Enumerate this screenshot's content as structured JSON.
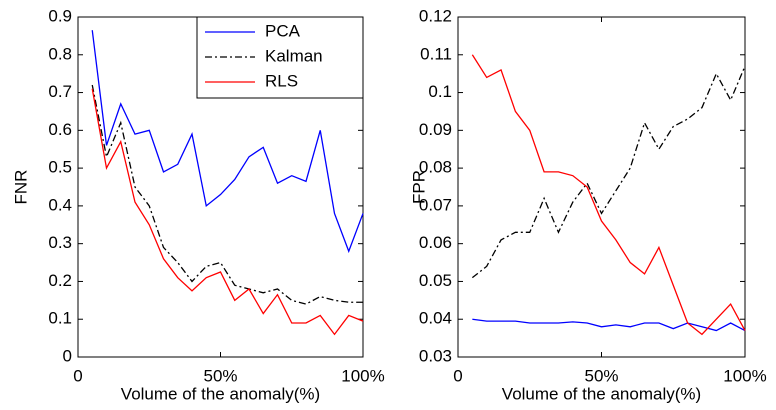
{
  "chart_data": [
    {
      "type": "line",
      "xlabel": "Volume of the anomaly(%)",
      "ylabel": "FNR",
      "x": [
        5,
        10,
        15,
        20,
        25,
        30,
        35,
        40,
        45,
        50,
        55,
        60,
        65,
        70,
        75,
        80,
        85,
        90,
        95,
        100
      ],
      "xlim": [
        0,
        100
      ],
      "xticks": [
        0,
        {
          "value": 50,
          "label": "50%"
        },
        {
          "value": 100,
          "label": "100%"
        }
      ],
      "ylim": [
        0,
        0.9
      ],
      "yticks": [
        0,
        0.1,
        0.2,
        0.3,
        0.4,
        0.5,
        0.6,
        0.7,
        0.8,
        0.9
      ],
      "legend": "upper right",
      "series": [
        {
          "name": "PCA",
          "color": "#0000ff",
          "linestyle": "solid",
          "values": [
            0.865,
            0.56,
            0.67,
            0.59,
            0.6,
            0.49,
            0.51,
            0.59,
            0.4,
            0.43,
            0.47,
            0.53,
            0.555,
            0.46,
            0.48,
            0.465,
            0.6,
            0.38,
            0.28,
            0.38
          ]
        },
        {
          "name": "Kalman",
          "color": "#000000",
          "linestyle": "dashdot",
          "values": [
            0.72,
            0.53,
            0.62,
            0.45,
            0.4,
            0.29,
            0.25,
            0.2,
            0.24,
            0.25,
            0.19,
            0.18,
            0.17,
            0.18,
            0.15,
            0.14,
            0.16,
            0.15,
            0.145,
            0.145
          ]
        },
        {
          "name": "RLS",
          "color": "#ff0000",
          "linestyle": "solid",
          "values": [
            0.71,
            0.5,
            0.57,
            0.41,
            0.35,
            0.26,
            0.21,
            0.175,
            0.21,
            0.225,
            0.15,
            0.18,
            0.115,
            0.165,
            0.09,
            0.09,
            0.11,
            0.06,
            0.11,
            0.095
          ]
        }
      ]
    },
    {
      "type": "line",
      "xlabel": "Volume of the anomaly(%)",
      "ylabel": "FPR",
      "x": [
        5,
        10,
        15,
        20,
        25,
        30,
        35,
        40,
        45,
        50,
        55,
        60,
        65,
        70,
        75,
        80,
        85,
        90,
        95,
        100
      ],
      "xlim": [
        0,
        100
      ],
      "xticks": [
        0,
        {
          "value": 50,
          "label": "50%"
        },
        {
          "value": 100,
          "label": "100%"
        }
      ],
      "ylim": [
        0.03,
        0.12
      ],
      "yticks": [
        0.03,
        0.04,
        0.05,
        0.06,
        0.07,
        0.08,
        0.09,
        0.1,
        0.11,
        0.12
      ],
      "series": [
        {
          "color": "#0000ff",
          "linestyle": "solid",
          "values": [
            0.04,
            0.0395,
            0.0395,
            0.0395,
            0.039,
            0.039,
            0.039,
            0.0393,
            0.039,
            0.038,
            0.0385,
            0.038,
            0.039,
            0.039,
            0.0375,
            0.039,
            0.038,
            0.037,
            0.039,
            0.037
          ]
        },
        {
          "color": "#000000",
          "linestyle": "dashdot",
          "values": [
            0.051,
            0.054,
            0.061,
            0.063,
            0.063,
            0.072,
            0.063,
            0.071,
            0.076,
            0.068,
            0.074,
            0.08,
            0.092,
            0.085,
            0.091,
            0.093,
            0.096,
            0.105,
            0.098,
            0.107
          ]
        },
        {
          "color": "#ff0000",
          "linestyle": "solid",
          "values": [
            0.11,
            0.104,
            0.106,
            0.095,
            0.09,
            0.079,
            0.079,
            0.078,
            0.075,
            0.066,
            0.061,
            0.055,
            0.052,
            0.059,
            0.049,
            0.039,
            0.036,
            0.04,
            0.044,
            0.037
          ]
        }
      ]
    }
  ]
}
